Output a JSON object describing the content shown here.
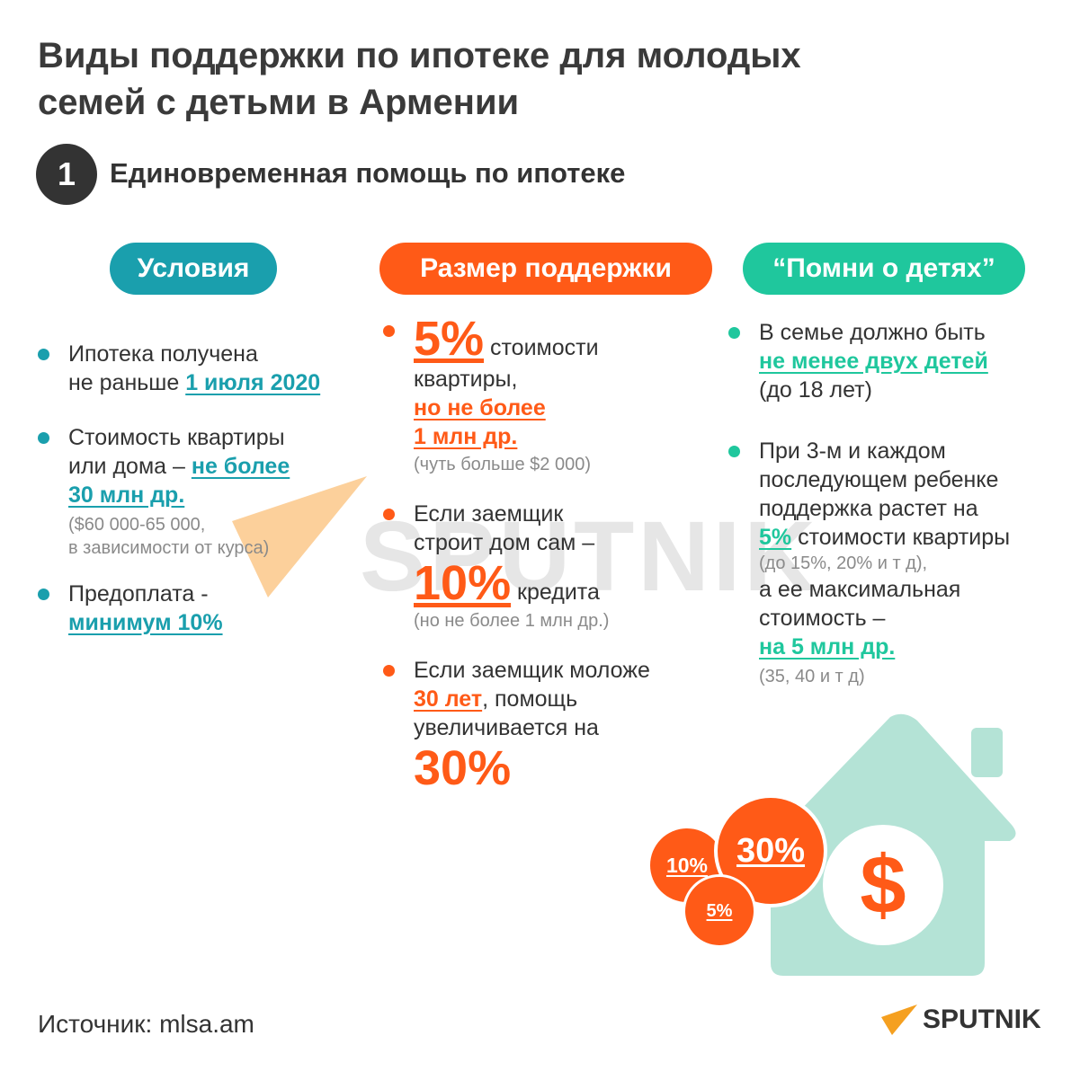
{
  "title": {
    "line1": "Виды поддержки по ипотеке для молодых",
    "line2": "семей с детьми в Армении"
  },
  "section": {
    "number": "1",
    "title": "Единовременная помощь по ипотеке"
  },
  "columns": {
    "conditions": {
      "header": "Условия",
      "items": [
        {
          "text1": "Ипотека получена",
          "text2": "не раньше ",
          "highlight": "1 июля 2020"
        },
        {
          "text1": "Стоимость квартиры",
          "text2": "или дома – ",
          "highlight1": "не более",
          "highlight2": "30 млн др.",
          "note1": "($60 000-65 000,",
          "note2": "в зависимости от курса)"
        },
        {
          "text1": "Предоплата -",
          "highlight": "минимум 10%"
        }
      ]
    },
    "support": {
      "header": "Размер поддержки",
      "items": [
        {
          "big": "5%",
          "text1": " стоимости",
          "text2": "квартиры,",
          "highlight1": "но не более",
          "highlight2": "1 млн др.",
          "note": "(чуть больше $2 000)"
        },
        {
          "text1": "Если заемщик",
          "text2": "строит дом сам –",
          "big": "10%",
          "text3": " кредита",
          "note": "(но не более 1 млн др.)"
        },
        {
          "text1": "Если заемщик моложе",
          "highlight": "30 лет",
          "text2": ", помощь",
          "text3": "увеличивается на",
          "big": "30%"
        }
      ]
    },
    "remember": {
      "header": "“Помни о детях”",
      "items": [
        {
          "text1": "В семье должно быть",
          "highlight": "не менее двух детей",
          "text2": "(до 18 лет)"
        },
        {
          "text1": "При 3-м и каждом",
          "text2": "последующем ребенке",
          "text3": "поддержка растет на",
          "highlight1": "5%",
          "text4": " стоимости квартиры",
          "note1": "(до 15%, 20% и т д),",
          "text5": "а ее максимальная",
          "text6": "стоимость –",
          "highlight2": "на 5 млн др.",
          "note2": "(35, 40 и т д)"
        }
      ]
    }
  },
  "illustration": {
    "coins": [
      "10%",
      "30%",
      "5%"
    ],
    "house_symbol": "$"
  },
  "footer": {
    "source": "Источник: mlsa.am",
    "logo_text": "SPUTNIK"
  },
  "watermark": "SPUTNIK",
  "colors": {
    "teal": "#1a9fad",
    "orange": "#ff5a17",
    "mint": "#1fc79d",
    "house": "#b4e3d6",
    "dark": "#333333"
  }
}
